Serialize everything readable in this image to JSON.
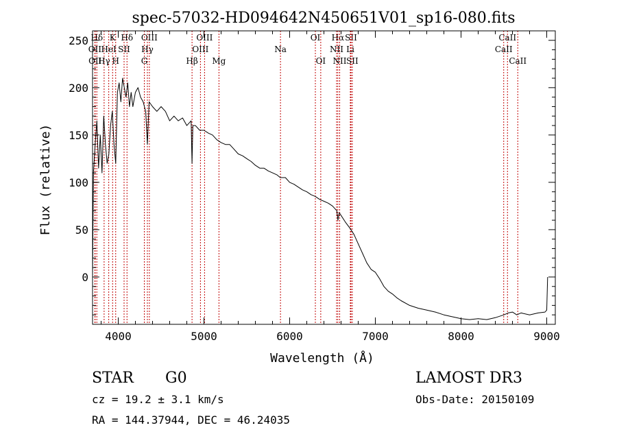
{
  "chart_data": {
    "type": "line",
    "title": "spec-57032-HD094642N450651V01_sp16-080.fits",
    "xlabel": "Wavelength (Å)",
    "ylabel": "Flux (relative)",
    "xlim": [
      3700,
      9100
    ],
    "ylim": [
      -50,
      260
    ],
    "xticks": [
      4000,
      5000,
      6000,
      7000,
      8000,
      9000
    ],
    "yticks": [
      0,
      50,
      100,
      150,
      200,
      250
    ],
    "grid": false,
    "series": [
      {
        "name": "flux",
        "x": [
          3700,
          3710,
          3730,
          3750,
          3770,
          3790,
          3810,
          3830,
          3850,
          3870,
          3890,
          3910,
          3930,
          3950,
          3970,
          3990,
          4010,
          4030,
          4050,
          4070,
          4090,
          4110,
          4130,
          4150,
          4170,
          4200,
          4230,
          4260,
          4290,
          4320,
          4340,
          4360,
          4400,
          4450,
          4500,
          4550,
          4600,
          4650,
          4700,
          4750,
          4800,
          4850,
          4861,
          4870,
          4900,
          4950,
          5000,
          5050,
          5100,
          5150,
          5200,
          5250,
          5300,
          5350,
          5400,
          5450,
          5500,
          5550,
          5600,
          5650,
          5700,
          5750,
          5800,
          5850,
          5890,
          5950,
          6000,
          6050,
          6100,
          6150,
          6200,
          6250,
          6300,
          6350,
          6400,
          6450,
          6500,
          6550,
          6563,
          6580,
          6600,
          6650,
          6700,
          6750,
          6800,
          6850,
          6900,
          6950,
          7000,
          7050,
          7100,
          7150,
          7200,
          7250,
          7300,
          7400,
          7500,
          7600,
          7700,
          7800,
          7900,
          8000,
          8100,
          8200,
          8300,
          8400,
          8500,
          8550,
          8600,
          8650,
          8700,
          8800,
          8900,
          8980,
          9000,
          9010
        ],
        "y": [
          0,
          110,
          140,
          165,
          115,
          150,
          110,
          170,
          140,
          120,
          130,
          160,
          175,
          140,
          120,
          195,
          205,
          185,
          210,
          200,
          190,
          205,
          180,
          195,
          180,
          195,
          200,
          190,
          185,
          175,
          140,
          185,
          180,
          175,
          180,
          175,
          165,
          170,
          165,
          168,
          160,
          165,
          120,
          160,
          160,
          155,
          155,
          152,
          150,
          145,
          142,
          140,
          140,
          135,
          130,
          128,
          125,
          122,
          118,
          115,
          115,
          112,
          110,
          108,
          105,
          105,
          100,
          98,
          95,
          92,
          90,
          87,
          85,
          82,
          80,
          78,
          75,
          70,
          60,
          68,
          65,
          58,
          52,
          45,
          35,
          25,
          15,
          8,
          5,
          -2,
          -10,
          -15,
          -18,
          -22,
          -25,
          -30,
          -33,
          -35,
          -37,
          -40,
          -42,
          -44,
          -45,
          -44,
          -45,
          -43,
          -40,
          -38,
          -37,
          -40,
          -38,
          -40,
          -38,
          -37,
          -35,
          0
        ]
      }
    ],
    "lines": [
      {
        "label": "Hδ",
        "x": 3750,
        "row": 0
      },
      {
        "label": "OII",
        "x": 3727,
        "row": 1
      },
      {
        "label": "OII",
        "x": 3730,
        "row": 2
      },
      {
        "label": "K",
        "x": 3934,
        "row": 0
      },
      {
        "label": "HeI",
        "x": 3889,
        "row": 1
      },
      {
        "label": "Hγ",
        "x": 3835,
        "row": 2
      },
      {
        "label": "SII",
        "x": 4068,
        "row": 1
      },
      {
        "label": "H",
        "x": 3970,
        "row": 2
      },
      {
        "label": "Hδ",
        "x": 4102,
        "row": 0
      },
      {
        "label": "OIII",
        "x": 4363,
        "row": 0
      },
      {
        "label": "Hγ",
        "x": 4340,
        "row": 1
      },
      {
        "label": "G",
        "x": 4304,
        "row": 2
      },
      {
        "label": "Hβ",
        "x": 4861,
        "row": 2
      },
      {
        "label": "OIII",
        "x": 5007,
        "row": 0
      },
      {
        "label": "OIII",
        "x": 4959,
        "row": 1
      },
      {
        "label": "Mg",
        "x": 5175,
        "row": 2
      },
      {
        "label": "Na",
        "x": 5893,
        "row": 1
      },
      {
        "label": "OI",
        "x": 6300,
        "row": 0
      },
      {
        "label": "OI",
        "x": 6363,
        "row": 2
      },
      {
        "label": "Hα",
        "x": 6563,
        "row": 0
      },
      {
        "label": "NII",
        "x": 6548,
        "row": 1
      },
      {
        "label": "NII",
        "x": 6584,
        "row": 2
      },
      {
        "label": "SII",
        "x": 6716,
        "row": 0
      },
      {
        "label": "Li",
        "x": 6708,
        "row": 1
      },
      {
        "label": "SII",
        "x": 6731,
        "row": 2
      },
      {
        "label": "CaII",
        "x": 8542,
        "row": 0
      },
      {
        "label": "CaII",
        "x": 8498,
        "row": 1
      },
      {
        "label": "CaII",
        "x": 8662,
        "row": 2
      }
    ],
    "line_color": "#000000",
    "marker_color": "#c00000"
  },
  "info": {
    "object_class": "STAR",
    "subclass": "G0",
    "survey": "LAMOST DR3",
    "cz": "cz = 19.2 ± 3.1 km/s",
    "obs_date": "Obs-Date: 20150109",
    "coords": "RA = 144.37944, DEC =  46.24035"
  }
}
